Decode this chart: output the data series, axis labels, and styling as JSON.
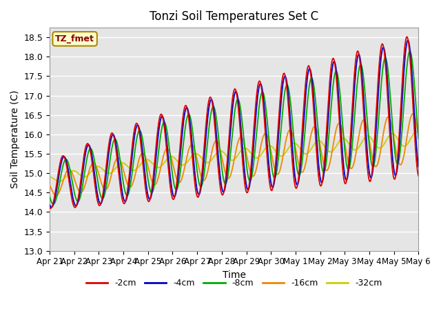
{
  "title": "Tonzi Soil Temperatures Set C",
  "xlabel": "Time",
  "ylabel": "Soil Temperature (C)",
  "ylim": [
    13.0,
    18.75
  ],
  "yticks": [
    13.0,
    13.5,
    14.0,
    14.5,
    15.0,
    15.5,
    16.0,
    16.5,
    17.0,
    17.5,
    18.0,
    18.5
  ],
  "colors": {
    "-2cm": "#dd0000",
    "-4cm": "#0000cc",
    "-8cm": "#00aa00",
    "-16cm": "#ee8800",
    "-32cm": "#cccc00"
  },
  "legend_label": "TZ_fmet",
  "legend_box_color": "#ffffcc",
  "legend_box_border": "#aa8800",
  "background_color": "#e5e5e5",
  "tick_labels": [
    "Apr 21",
    "Apr 22",
    "Apr 23",
    "Apr 24",
    "Apr 25",
    "Apr 26",
    "Apr 27",
    "Apr 28",
    "Apr 29",
    "Apr 30",
    "May 1",
    "May 2",
    "May 3",
    "May 4",
    "May 5",
    "May 6"
  ],
  "tick_positions": [
    0,
    1,
    2,
    3,
    4,
    5,
    6,
    7,
    8,
    9,
    10,
    11,
    12,
    13,
    14,
    15
  ]
}
